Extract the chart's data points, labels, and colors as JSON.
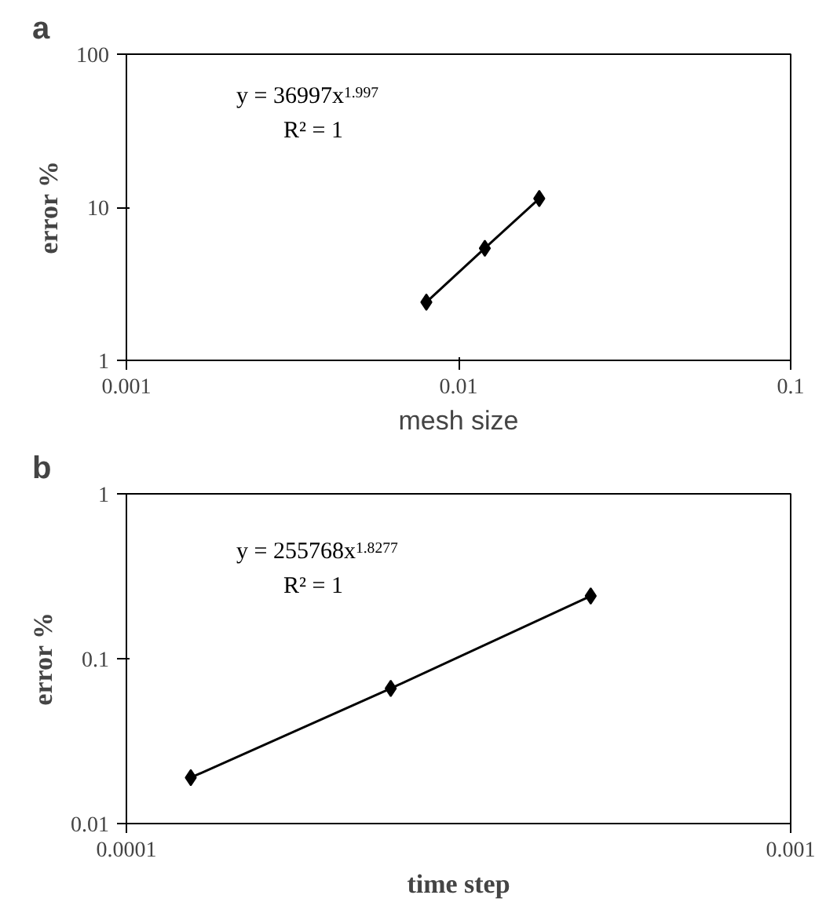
{
  "chart_data": [
    {
      "type": "line",
      "title": "a",
      "xlabel": "mesh size",
      "ylabel": "error %",
      "log": "xy",
      "x": [
        0.008,
        0.012,
        0.0175
      ],
      "series": [
        {
          "color": "#000000",
          "values": [
            2.4,
            5.4,
            11.4
          ]
        }
      ],
      "xlim": [
        0.001,
        0.1
      ],
      "xticks": [
        0.001,
        0.01,
        0.1
      ],
      "ylim": [
        1,
        100
      ],
      "yticks": [
        1,
        10,
        100
      ],
      "marker": "diamond",
      "line_style": "solid",
      "grid": false,
      "annotations": [
        "y = 36997x$^{1.997}$",
        "R² = 1"
      ]
    },
    {
      "type": "line",
      "title": "b",
      "xlabel": "time step",
      "ylabel": "error %",
      "log": "xy",
      "x": [
        0.000125,
        0.00025,
        0.0005
      ],
      "series": [
        {
          "color": "#000000",
          "values": [
            0.019,
            0.066,
            0.24
          ]
        }
      ],
      "xlim": [
        0.0001,
        0.001
      ],
      "xticks": [
        0.0001,
        0.001
      ],
      "ylim": [
        0.01,
        1
      ],
      "yticks": [
        0.01,
        0.1,
        1
      ],
      "marker": "diamond",
      "line_style": "solid",
      "grid": false,
      "annotations": [
        "y = 255768x$^{1.8277}$",
        "R² = 1"
      ]
    }
  ]
}
